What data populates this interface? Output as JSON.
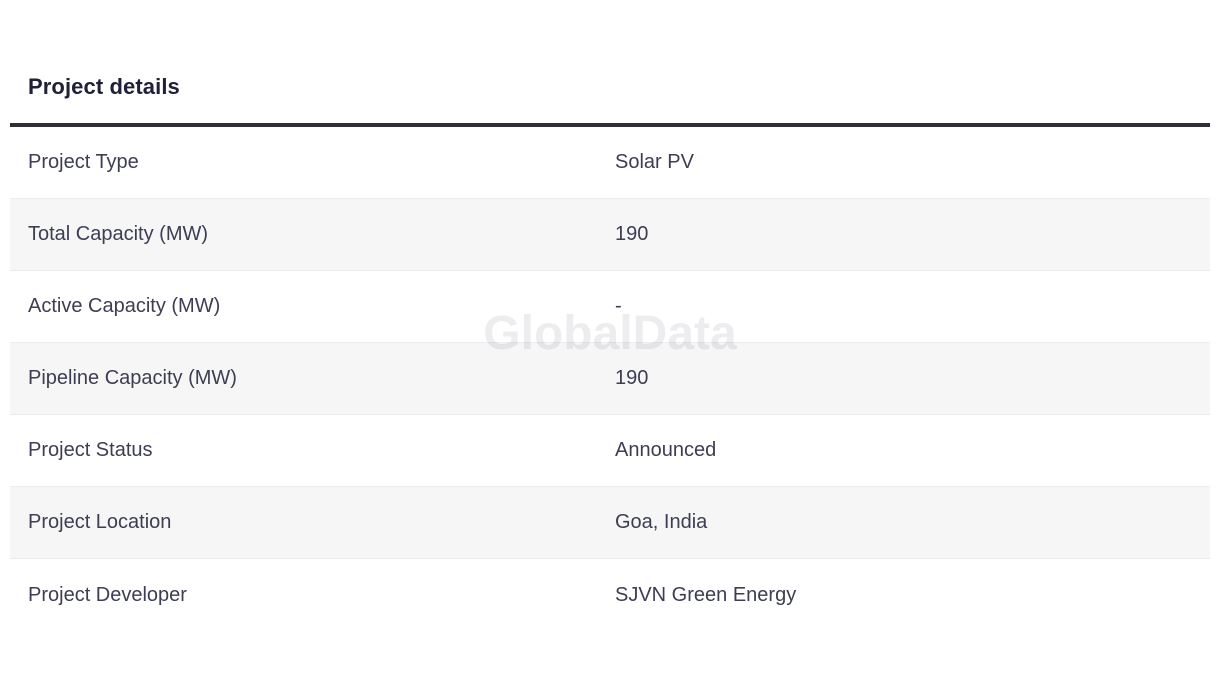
{
  "page": {
    "title": "Project details",
    "watermark": "GlobalData"
  },
  "table": {
    "rows": [
      {
        "label": "Project Type",
        "value": "Solar PV"
      },
      {
        "label": "Total Capacity (MW)",
        "value": "190"
      },
      {
        "label": "Active Capacity (MW)",
        "value": "-"
      },
      {
        "label": "Pipeline Capacity (MW)",
        "value": "190"
      },
      {
        "label": "Project Status",
        "value": "Announced"
      },
      {
        "label": "Project Location",
        "value": "Goa, India"
      },
      {
        "label": "Project Developer",
        "value": "SJVN Green Energy"
      }
    ]
  },
  "colors": {
    "title_text": "#20203a",
    "body_text": "#3d3d54",
    "title_rule": "#2f2f36",
    "row_stripe_bg": "#f6f6f7",
    "row_border": "#ececee",
    "watermark_text": "#e9e9ee"
  }
}
